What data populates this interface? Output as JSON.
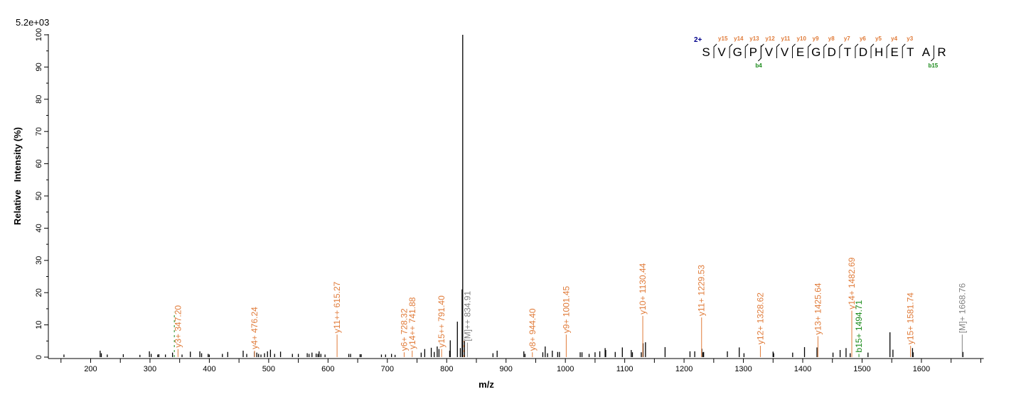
{
  "chart_data": {
    "type": "bar",
    "subtype": "mass-spectrum",
    "intensity_scale": "5.2e+03",
    "xlabel": "m/z",
    "ylabel": "Relative   Intensity (%)",
    "xlim": [
      128,
      1705
    ],
    "ylim": [
      0,
      100
    ],
    "x_ticks": [
      200,
      300,
      400,
      500,
      600,
      700,
      800,
      900,
      1000,
      1100,
      1200,
      1300,
      1400,
      1500,
      1600
    ],
    "y_ticks": [
      0,
      10,
      20,
      30,
      40,
      50,
      60,
      70,
      80,
      90,
      100
    ],
    "grid": false,
    "colors": {
      "peak": "#000000",
      "y_ion": "#e07b39",
      "b_ion": "#1a8a1a",
      "precursor": "#808080",
      "charge": "#00008b"
    },
    "peaks": [
      [
        155,
        0.8
      ],
      [
        216,
        2.0
      ],
      [
        218,
        1.2
      ],
      [
        228,
        0.8
      ],
      [
        255,
        0.9
      ],
      [
        283,
        0.7
      ],
      [
        299,
        1.8
      ],
      [
        302,
        1.0
      ],
      [
        313,
        0.8
      ],
      [
        315,
        0.9
      ],
      [
        326,
        0.8
      ],
      [
        338,
        1.4
      ],
      [
        354,
        0.8
      ],
      [
        368,
        1.7
      ],
      [
        384,
        1.8
      ],
      [
        387,
        1.2
      ],
      [
        398,
        1.0
      ],
      [
        400,
        0.8
      ],
      [
        422,
        1.0
      ],
      [
        431,
        1.6
      ],
      [
        457,
        2.0
      ],
      [
        463,
        1.0
      ],
      [
        476,
        1.7
      ],
      [
        480,
        1.4
      ],
      [
        483,
        1.0
      ],
      [
        487,
        0.8
      ],
      [
        493,
        1.2
      ],
      [
        498,
        1.8
      ],
      [
        503,
        2.3
      ],
      [
        510,
        1.0
      ],
      [
        520,
        1.7
      ],
      [
        540,
        1.0
      ],
      [
        550,
        1.0
      ],
      [
        565,
        1.2
      ],
      [
        568,
        1.0
      ],
      [
        573,
        1.4
      ],
      [
        580,
        1.1
      ],
      [
        583,
        1.0
      ],
      [
        585,
        1.8
      ],
      [
        588,
        1.0
      ],
      [
        595,
        0.8
      ],
      [
        635,
        1.0
      ],
      [
        638,
        1.0
      ],
      [
        654,
        0.9
      ],
      [
        656,
        0.9
      ],
      [
        690,
        0.8
      ],
      [
        697,
        0.8
      ],
      [
        707,
        1.0
      ],
      [
        713,
        0.7
      ],
      [
        757,
        1.4
      ],
      [
        763,
        2.5
      ],
      [
        774,
        2.9
      ],
      [
        779,
        1.6
      ],
      [
        784,
        3.3
      ],
      [
        787,
        2.5
      ],
      [
        805,
        2.0
      ],
      [
        806,
        5.2
      ],
      [
        818,
        11.0
      ],
      [
        823,
        2.8
      ],
      [
        826,
        21.0
      ],
      [
        827,
        100
      ],
      [
        830,
        5.0
      ],
      [
        878,
        1.2
      ],
      [
        885,
        2.0
      ],
      [
        930,
        1.8
      ],
      [
        932,
        1.0
      ],
      [
        962,
        1.5
      ],
      [
        966,
        3.3
      ],
      [
        970,
        1.2
      ],
      [
        978,
        2.0
      ],
      [
        987,
        1.6
      ],
      [
        990,
        1.6
      ],
      [
        1025,
        1.5
      ],
      [
        1028,
        1.5
      ],
      [
        1040,
        1.0
      ],
      [
        1050,
        1.5
      ],
      [
        1058,
        1.8
      ],
      [
        1067,
        2.8
      ],
      [
        1068,
        2.2
      ],
      [
        1084,
        1.6
      ],
      [
        1096,
        3.0
      ],
      [
        1111,
        2.2
      ],
      [
        1113,
        1.5
      ],
      [
        1128,
        1.5
      ],
      [
        1131,
        4.3
      ],
      [
        1135,
        4.6
      ],
      [
        1168,
        3.1
      ],
      [
        1210,
        1.8
      ],
      [
        1218,
        1.8
      ],
      [
        1230,
        2.6
      ],
      [
        1232,
        1.5
      ],
      [
        1233,
        1.6
      ],
      [
        1273,
        1.8
      ],
      [
        1293,
        3.0
      ],
      [
        1301,
        1.2
      ],
      [
        1350,
        1.7
      ],
      [
        1351,
        1.2
      ],
      [
        1383,
        1.4
      ],
      [
        1403,
        3.1
      ],
      [
        1424,
        3.0
      ],
      [
        1451,
        1.4
      ],
      [
        1463,
        2.2
      ],
      [
        1473,
        2.8
      ],
      [
        1480,
        1.2
      ],
      [
        1510,
        1.4
      ],
      [
        1547,
        7.7
      ],
      [
        1552,
        2.3
      ],
      [
        1585,
        2.8
      ],
      [
        1586,
        1.5
      ],
      [
        1670,
        1.6
      ]
    ],
    "annotations": [
      {
        "mz": 341.0,
        "intensity": 14.0,
        "type": "b_ion",
        "label": ""
      },
      {
        "mz": 347.2,
        "intensity": 2.5,
        "type": "y_ion",
        "label": "y3+ 347.20"
      },
      {
        "mz": 476.24,
        "intensity": 2.0,
        "type": "y_ion",
        "label": "y4+ 476.24"
      },
      {
        "mz": 615.27,
        "intensity": 7.0,
        "type": "y_ion",
        "label": "y11++ 615.27"
      },
      {
        "mz": 728.32,
        "intensity": 1.5,
        "type": "y_ion",
        "label": "y6+ 728.32"
      },
      {
        "mz": 741.88,
        "intensity": 2.0,
        "type": "y_ion",
        "label": "y14++ 741.88"
      },
      {
        "mz": 791.4,
        "intensity": 2.5,
        "type": "y_ion",
        "label": "y15++ 791.40"
      },
      {
        "mz": 829.0,
        "intensity": 5.0,
        "type": "y_ion",
        "label": ""
      },
      {
        "mz": 834.91,
        "intensity": 4.5,
        "type": "precursor",
        "label": "[M]++ 834.91"
      },
      {
        "mz": 944.4,
        "intensity": 1.5,
        "type": "y_ion",
        "label": "y8+ 944.40"
      },
      {
        "mz": 1001.45,
        "intensity": 7.0,
        "type": "y_ion",
        "label": "y9+ 1001.45"
      },
      {
        "mz": 1130.44,
        "intensity": 12.8,
        "type": "y_ion",
        "label": "y10+ 1130.44"
      },
      {
        "mz": 1229.53,
        "intensity": 12.3,
        "type": "y_ion",
        "label": "y11+ 1229.53"
      },
      {
        "mz": 1328.62,
        "intensity": 3.5,
        "type": "y_ion",
        "label": "y12+ 1328.62"
      },
      {
        "mz": 1425.64,
        "intensity": 6.5,
        "type": "y_ion",
        "label": "y13+ 1425.64"
      },
      {
        "mz": 1482.69,
        "intensity": 14.4,
        "type": "y_ion",
        "label": "y14+ 1482.69"
      },
      {
        "mz": 1494.71,
        "intensity": 1.0,
        "type": "b_ion",
        "label": "b15+ 1494.71"
      },
      {
        "mz": 1581.74,
        "intensity": 3.5,
        "type": "y_ion",
        "label": "y15+ 1581.74"
      },
      {
        "mz": 1668.76,
        "intensity": 7.0,
        "type": "precursor",
        "label": "[M]+ 1668.76"
      }
    ],
    "peptide": {
      "charge": "2+",
      "sequence": [
        "S",
        "V",
        "G",
        "P",
        "V",
        "V",
        "E",
        "G",
        "D",
        "T",
        "D",
        "H",
        "E",
        "T",
        "A",
        "R"
      ],
      "y_ions": [
        {
          "after": 1,
          "label": "y15"
        },
        {
          "after": 2,
          "label": "y14"
        },
        {
          "after": 3,
          "label": "y13"
        },
        {
          "after": 4,
          "label": "y12"
        },
        {
          "after": 5,
          "label": "y11"
        },
        {
          "after": 6,
          "label": "y10"
        },
        {
          "after": 7,
          "label": "y9"
        },
        {
          "after": 8,
          "label": "y8"
        },
        {
          "after": 9,
          "label": "y7"
        },
        {
          "after": 10,
          "label": "y6"
        },
        {
          "after": 11,
          "label": "y5"
        },
        {
          "after": 12,
          "label": "y4"
        },
        {
          "after": 13,
          "label": "y3"
        }
      ],
      "b_ions": [
        {
          "after": 4,
          "label": "b4"
        },
        {
          "after": 15,
          "label": "b15"
        }
      ]
    }
  }
}
